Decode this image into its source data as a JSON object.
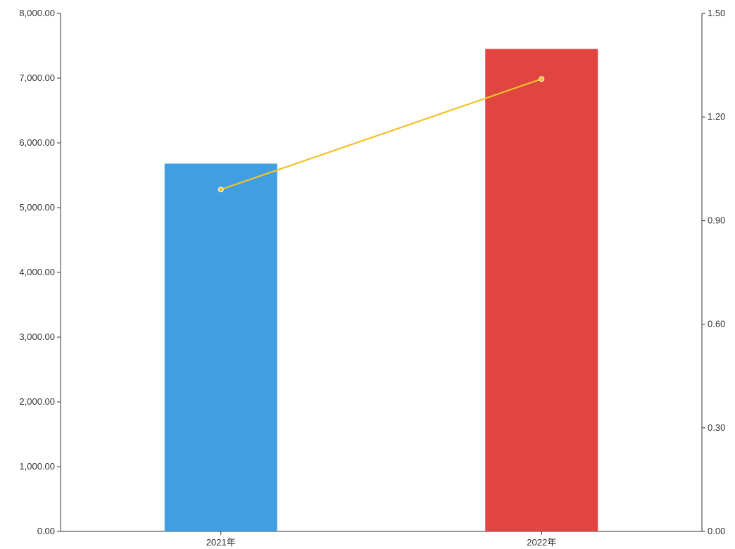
{
  "chart_data": {
    "type": "bar",
    "categories": [
      "2021年",
      "2022年"
    ],
    "series": [
      {
        "type": "bar",
        "axis": "left",
        "values": [
          5680,
          7450
        ],
        "colors": [
          "#409FE1",
          "#E04540"
        ]
      },
      {
        "type": "line",
        "axis": "right",
        "values": [
          0.99,
          1.31
        ],
        "color": "#F2C22B"
      }
    ],
    "y_left": {
      "ylim": [
        0,
        8000
      ],
      "ticks": [
        "0.00",
        "1,000.00",
        "2,000.00",
        "3,000.00",
        "4,000.00",
        "5,000.00",
        "6,000.00",
        "7,000.00",
        "8,000.00"
      ]
    },
    "y_right": {
      "ylim": [
        0,
        1.5
      ],
      "ticks": [
        "0.00",
        "0.30",
        "0.60",
        "0.90",
        "1.20",
        "1.50"
      ]
    },
    "grid": false,
    "legend": "none",
    "axis_color": "#333333"
  }
}
